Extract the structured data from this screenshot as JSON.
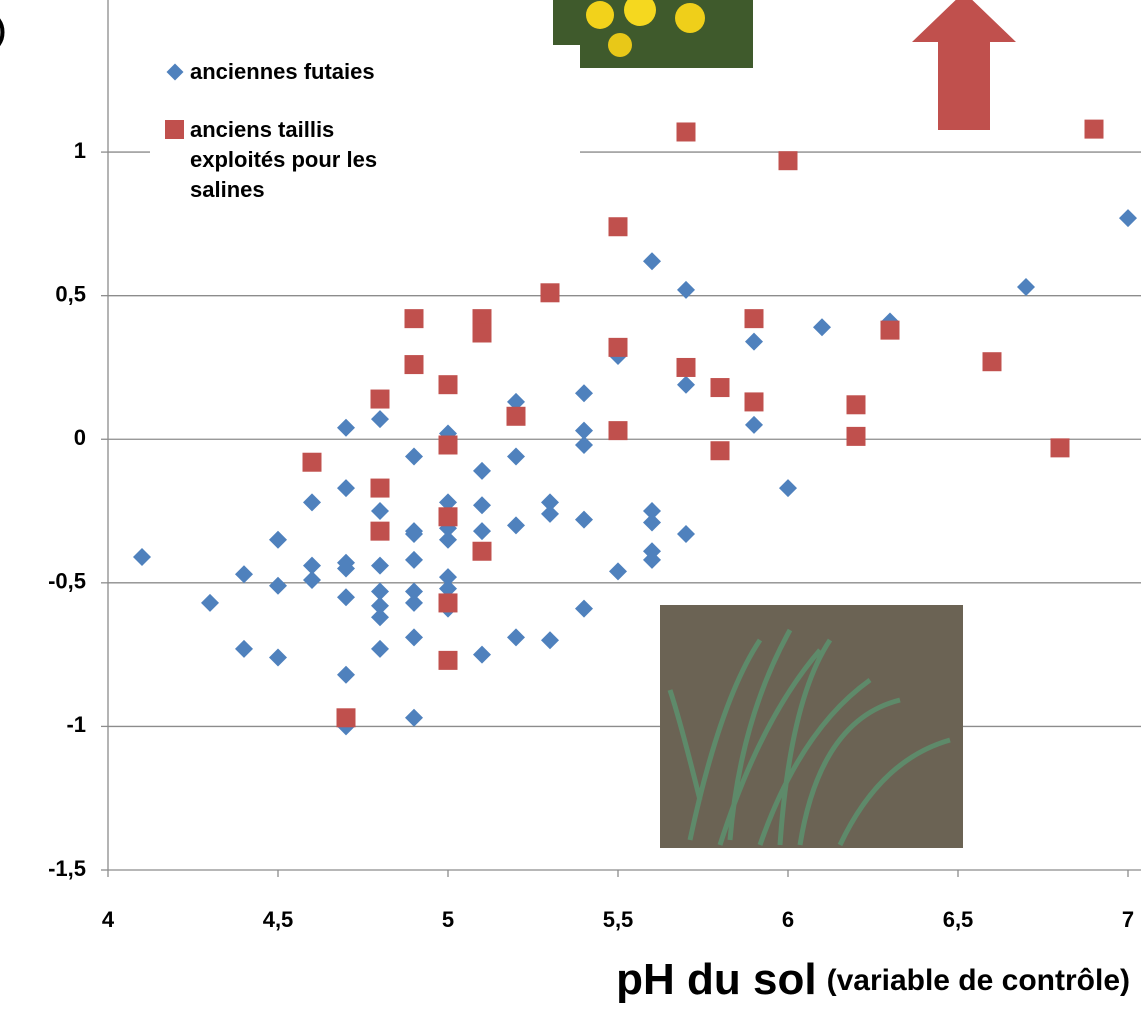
{
  "chart_data": {
    "type": "scatter",
    "ylabel": ")",
    "xlabel": "pH du sol",
    "xlabel_detail": "(variable de contrôle)",
    "xlim": [
      4,
      7
    ],
    "ylim": [
      -1.5,
      1.5
    ],
    "xticks": [
      4,
      {
        "value": 4.5,
        "label": "4,5"
      },
      5,
      {
        "value": 5.5,
        "label": "5,5"
      },
      6,
      {
        "value": 6.5,
        "label": "6,5"
      },
      7
    ],
    "yticks": [
      {
        "value": -1.5,
        "label": "-1,5"
      },
      -1,
      {
        "value": -0.5,
        "label": "-0,5"
      },
      0,
      {
        "value": 0.5,
        "label": "0,5"
      },
      1
    ],
    "grid": true,
    "legend": "upper-left",
    "series": [
      {
        "name": "anciennes futaies",
        "color": "#4f81bd",
        "marker": "diamond",
        "x": [
          4.1,
          4.3,
          4.4,
          4.4,
          4.5,
          4.5,
          4.5,
          4.6,
          4.6,
          4.6,
          4.7,
          4.7,
          4.7,
          4.7,
          4.7,
          4.7,
          4.7,
          4.8,
          4.8,
          4.8,
          4.8,
          4.8,
          4.8,
          4.8,
          4.9,
          4.9,
          4.9,
          4.9,
          4.9,
          4.9,
          4.9,
          4.9,
          5.0,
          5.0,
          5.0,
          5.0,
          5.0,
          5.0,
          5.0,
          5.1,
          5.1,
          5.1,
          5.1,
          5.2,
          5.2,
          5.2,
          5.2,
          5.3,
          5.3,
          5.3,
          5.4,
          5.4,
          5.4,
          5.4,
          5.4,
          5.5,
          5.5,
          5.6,
          5.6,
          5.6,
          5.6,
          5.6,
          5.7,
          5.7,
          5.7,
          5.9,
          5.9,
          6.0,
          6.1,
          6.3,
          6.7,
          7.0
        ],
        "values": [
          -0.41,
          -0.57,
          -0.47,
          -0.73,
          -0.35,
          -0.51,
          -0.76,
          -0.22,
          -0.44,
          -0.49,
          0.04,
          -0.17,
          -0.43,
          -0.45,
          -0.55,
          -0.82,
          -1.0,
          0.07,
          -0.25,
          -0.44,
          -0.53,
          -0.58,
          -0.62,
          -0.73,
          -0.06,
          -0.32,
          -0.33,
          -0.42,
          -0.53,
          -0.57,
          -0.69,
          -0.97,
          0.02,
          -0.22,
          -0.31,
          -0.35,
          -0.48,
          -0.52,
          -0.59,
          -0.11,
          -0.23,
          -0.32,
          -0.75,
          0.13,
          -0.06,
          -0.3,
          -0.69,
          -0.22,
          -0.26,
          -0.7,
          0.16,
          0.03,
          -0.02,
          -0.28,
          -0.59,
          0.29,
          -0.46,
          0.62,
          -0.25,
          -0.29,
          -0.39,
          -0.42,
          0.52,
          0.19,
          -0.33,
          0.34,
          0.05,
          -0.17,
          0.39,
          0.41,
          0.53,
          0.77
        ]
      },
      {
        "name": "anciens taillis exploités pour les salines",
        "color": "#c0504d",
        "marker": "square",
        "x": [
          4.6,
          4.7,
          4.8,
          4.8,
          4.8,
          4.9,
          4.9,
          5.0,
          5.0,
          5.0,
          5.0,
          5.0,
          5.1,
          5.1,
          5.1,
          5.2,
          5.3,
          5.5,
          5.5,
          5.5,
          5.7,
          5.7,
          5.8,
          5.8,
          5.9,
          5.9,
          6.0,
          6.2,
          6.2,
          6.3,
          6.6,
          6.8,
          6.9
        ],
        "values": [
          -0.08,
          -0.97,
          0.14,
          -0.17,
          -0.32,
          0.42,
          0.26,
          0.19,
          -0.02,
          -0.27,
          -0.57,
          -0.77,
          0.42,
          0.37,
          -0.39,
          0.08,
          0.51,
          0.74,
          0.32,
          0.03,
          1.07,
          0.25,
          0.18,
          -0.04,
          0.42,
          0.13,
          0.97,
          0.12,
          0.01,
          0.38,
          0.27,
          -0.03,
          1.08
        ]
      }
    ]
  }
}
